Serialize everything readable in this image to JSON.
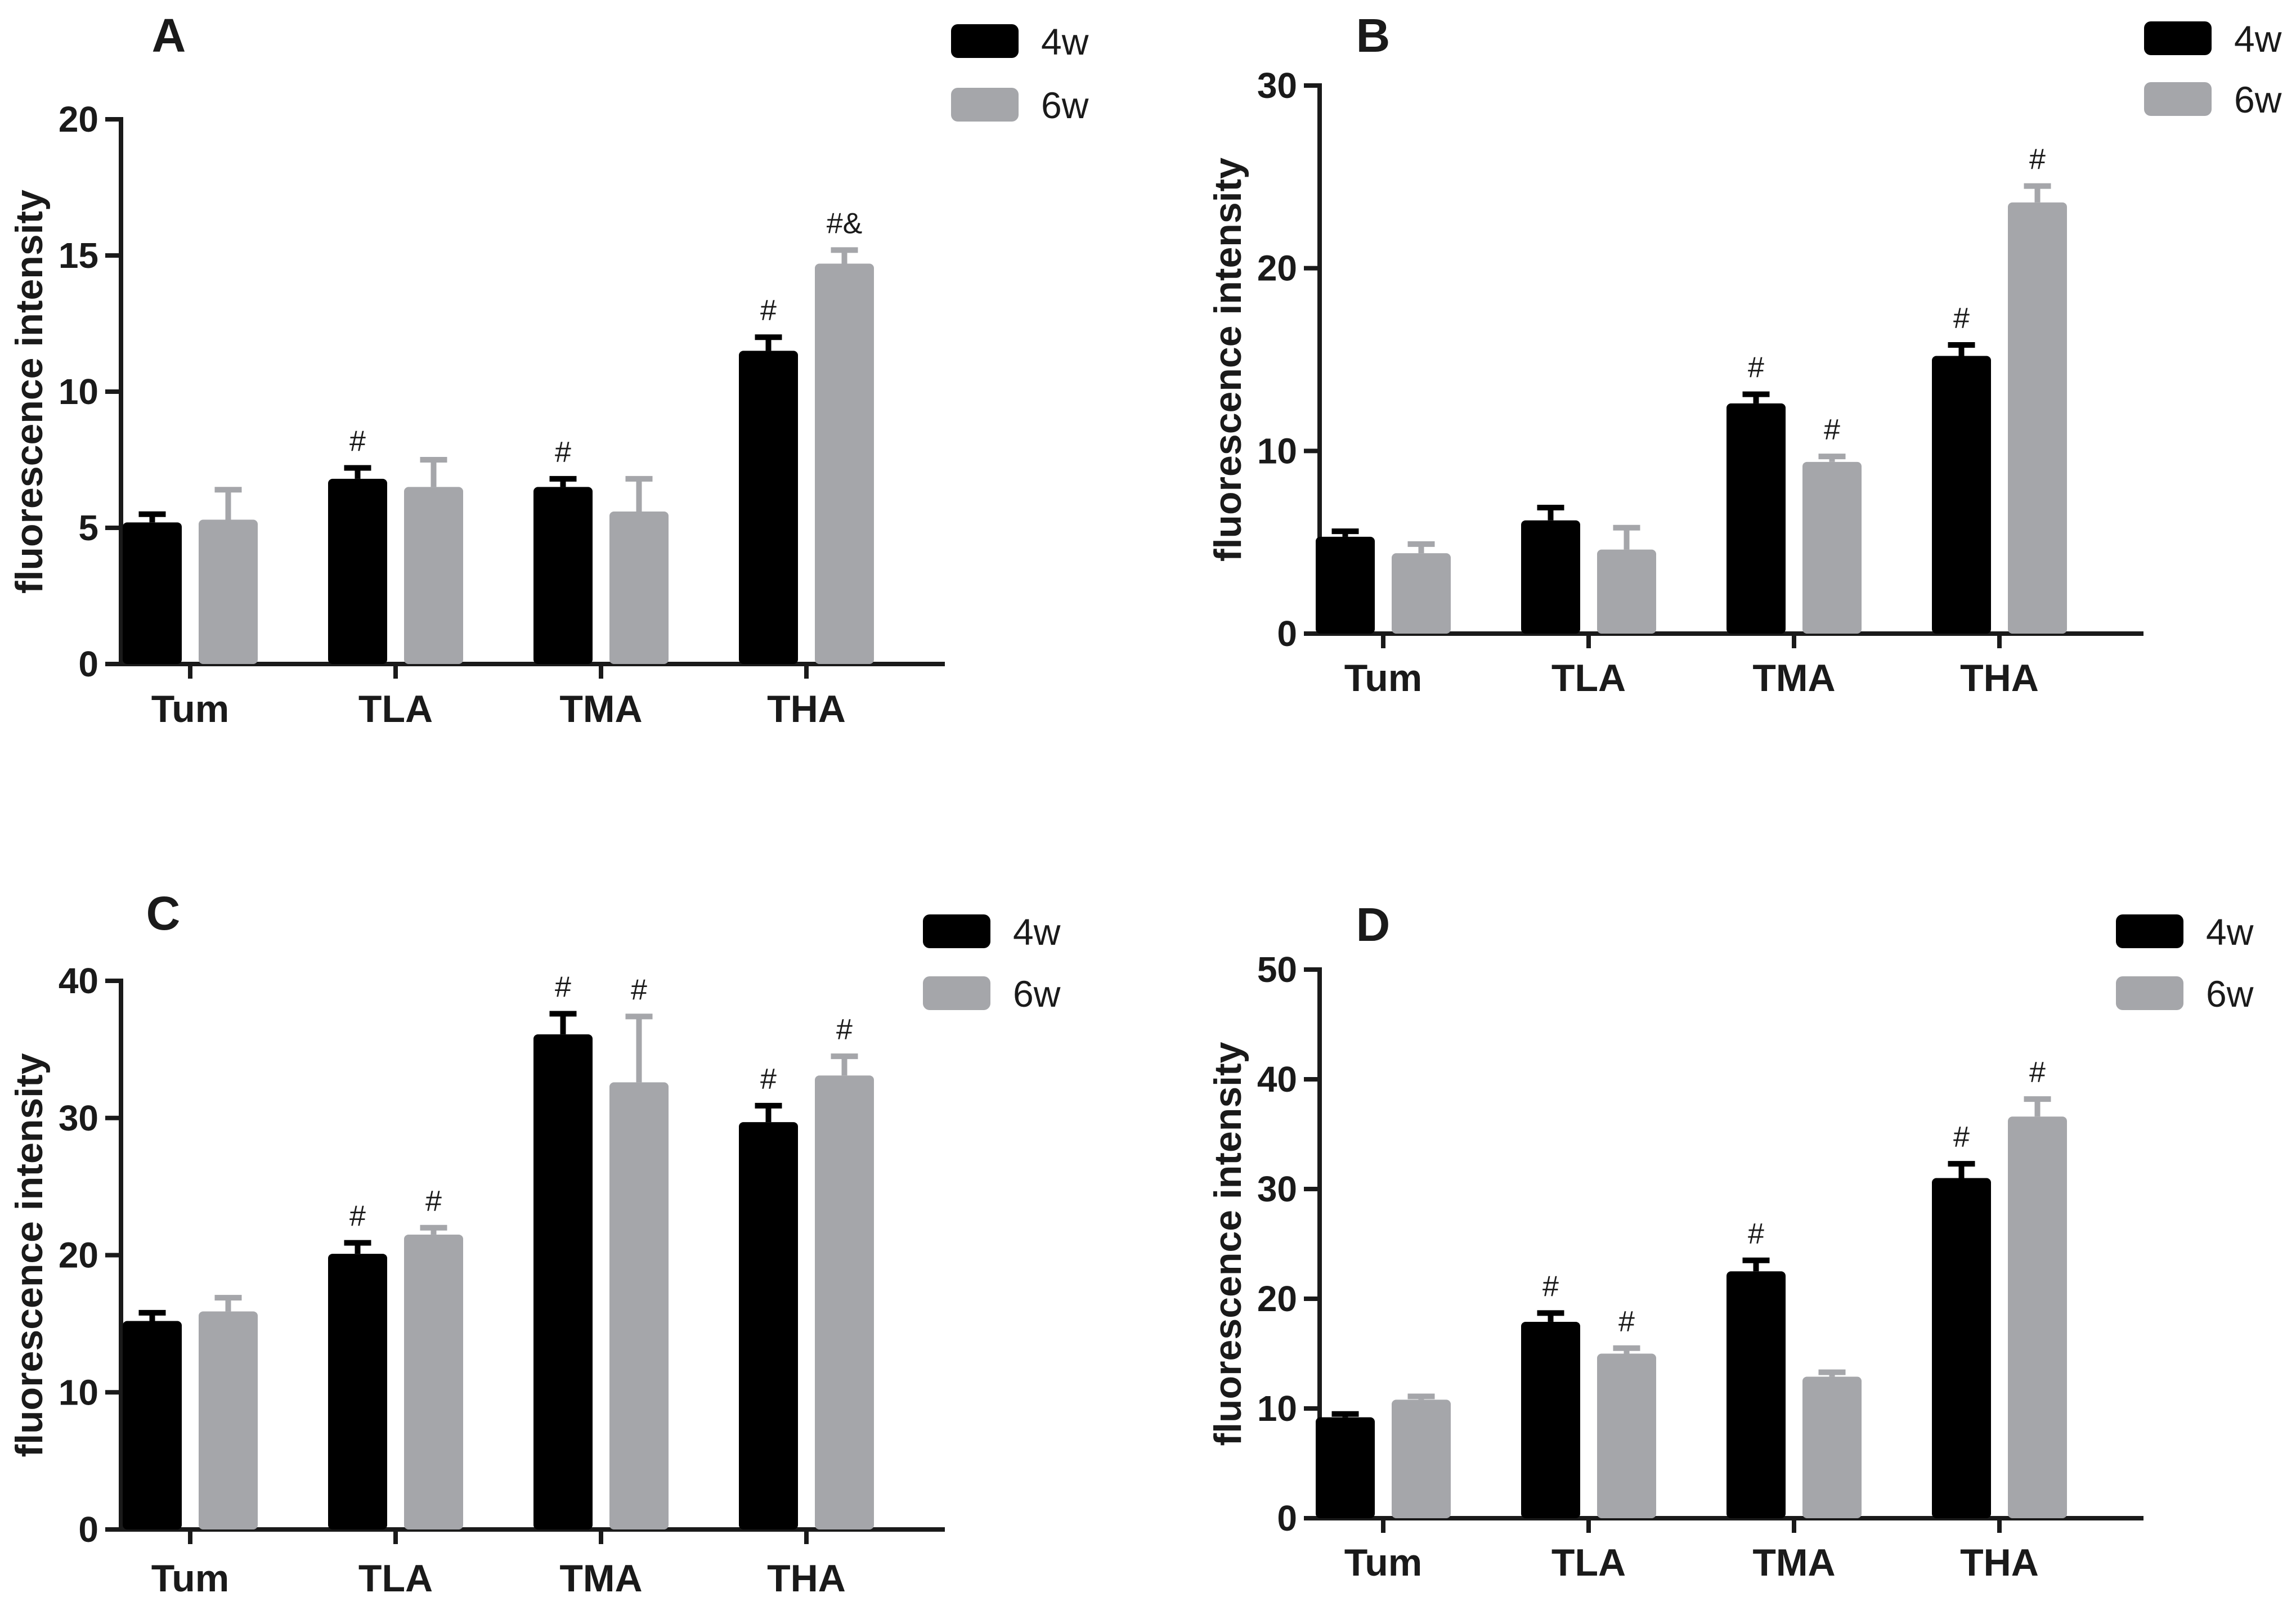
{
  "legend": {
    "series_a": "4w",
    "series_b": "6w"
  },
  "colors": {
    "series_a": "#000000",
    "series_b": "#a5a6aa",
    "axis": "#1a1a1a"
  },
  "chart_data": [
    {
      "type": "bar",
      "panel": "A",
      "ylabel": "fluorescence intensity",
      "ylim": [
        0,
        20
      ],
      "yticks": [
        "0",
        "5",
        "10",
        "15",
        "20"
      ],
      "categories": [
        "Tum",
        "TLA",
        "TMA",
        "THA"
      ],
      "series": [
        {
          "name": "4w",
          "values": [
            5.2,
            6.8,
            6.5,
            11.5
          ],
          "errors": [
            0.3,
            0.4,
            0.3,
            0.5
          ]
        },
        {
          "name": "6w",
          "values": [
            5.3,
            6.5,
            5.6,
            14.7
          ],
          "errors": [
            1.1,
            1.0,
            1.2,
            0.5
          ]
        }
      ],
      "annotations": [
        {
          "category": "TLA",
          "series": "4w",
          "text": "#"
        },
        {
          "category": "TMA",
          "series": "4w",
          "text": "#"
        },
        {
          "category": "THA",
          "series": "4w",
          "text": "#"
        },
        {
          "category": "THA",
          "series": "6w",
          "text": "#&"
        }
      ]
    },
    {
      "type": "bar",
      "panel": "B",
      "ylabel": "fluorescence intensity",
      "ylim": [
        0,
        30
      ],
      "yticks": [
        "0",
        "10",
        "20",
        "30"
      ],
      "categories": [
        "Tum",
        "TLA",
        "TMA",
        "THA"
      ],
      "series": [
        {
          "name": "4w",
          "values": [
            5.3,
            6.2,
            12.6,
            15.2
          ],
          "errors": [
            0.3,
            0.7,
            0.5,
            0.6
          ]
        },
        {
          "name": "6w",
          "values": [
            4.4,
            4.6,
            9.4,
            23.6
          ],
          "errors": [
            0.5,
            1.2,
            0.3,
            0.9
          ]
        }
      ],
      "annotations": [
        {
          "category": "TMA",
          "series": "4w",
          "text": "#"
        },
        {
          "category": "TMA",
          "series": "6w",
          "text": "#"
        },
        {
          "category": "THA",
          "series": "4w",
          "text": "#"
        },
        {
          "category": "THA",
          "series": "6w",
          "text": "#"
        }
      ]
    },
    {
      "type": "bar",
      "panel": "C",
      "ylabel": "fluorescence intensity",
      "ylim": [
        0,
        40
      ],
      "yticks": [
        "0",
        "10",
        "20",
        "30",
        "40"
      ],
      "categories": [
        "Tum",
        "TLA",
        "TMA",
        "THA"
      ],
      "series": [
        {
          "name": "4w",
          "values": [
            15.2,
            20.1,
            36.1,
            29.7
          ],
          "errors": [
            0.6,
            0.8,
            1.5,
            1.2
          ]
        },
        {
          "name": "6w",
          "values": [
            15.9,
            21.5,
            32.6,
            33.1
          ],
          "errors": [
            1.0,
            0.5,
            4.8,
            1.4
          ]
        }
      ],
      "annotations": [
        {
          "category": "TLA",
          "series": "4w",
          "text": "#"
        },
        {
          "category": "TLA",
          "series": "6w",
          "text": "#"
        },
        {
          "category": "TMA",
          "series": "4w",
          "text": "#"
        },
        {
          "category": "TMA",
          "series": "6w",
          "text": "#"
        },
        {
          "category": "THA",
          "series": "4w",
          "text": "#"
        },
        {
          "category": "THA",
          "series": "6w",
          "text": "#"
        }
      ]
    },
    {
      "type": "bar",
      "panel": "D",
      "ylabel": "fluorescence intensity",
      "ylim": [
        0,
        50
      ],
      "yticks": [
        "0",
        "10",
        "20",
        "30",
        "40",
        "50"
      ],
      "categories": [
        "Tum",
        "TLA",
        "TMA",
        "THA"
      ],
      "series": [
        {
          "name": "4w",
          "values": [
            9.2,
            17.9,
            22.5,
            31.0
          ],
          "errors": [
            0.3,
            0.8,
            1.0,
            1.3
          ]
        },
        {
          "name": "6w",
          "values": [
            10.8,
            15.0,
            12.9,
            36.6
          ],
          "errors": [
            0.3,
            0.5,
            0.4,
            1.6
          ]
        }
      ],
      "annotations": [
        {
          "category": "TLA",
          "series": "4w",
          "text": "#"
        },
        {
          "category": "TLA",
          "series": "6w",
          "text": "#"
        },
        {
          "category": "TMA",
          "series": "4w",
          "text": "#"
        },
        {
          "category": "THA",
          "series": "4w",
          "text": "#"
        },
        {
          "category": "THA",
          "series": "6w",
          "text": "#"
        }
      ]
    }
  ]
}
